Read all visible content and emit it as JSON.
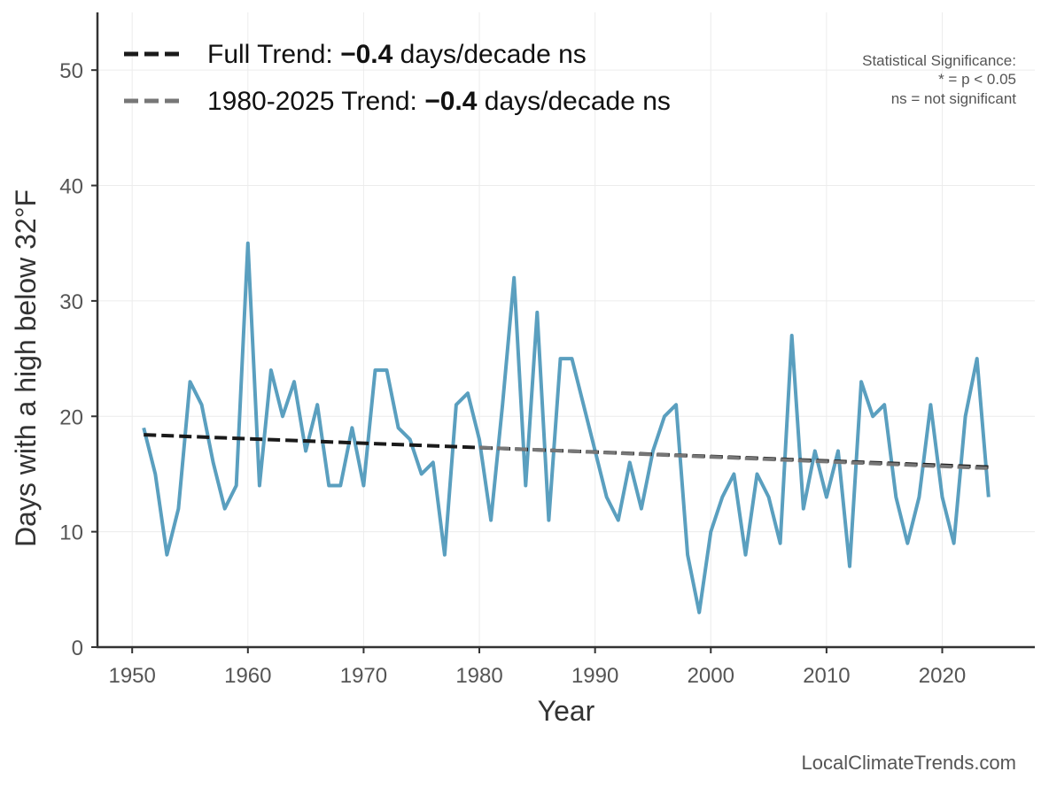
{
  "chart_data": {
    "type": "line",
    "xlabel": "Year",
    "ylabel": "Days with a high below 32°F",
    "xlim": [
      1947,
      2028
    ],
    "ylim": [
      0,
      55
    ],
    "xticks": [
      1950,
      1960,
      1970,
      1980,
      1990,
      2000,
      2010,
      2020
    ],
    "yticks": [
      0,
      10,
      20,
      30,
      40,
      50
    ],
    "grid": true,
    "legend_position": "top-left",
    "series": [
      {
        "kind": "observed",
        "color": "#5a9fbf",
        "x": [
          1951,
          1952,
          1953,
          1954,
          1955,
          1956,
          1957,
          1958,
          1959,
          1960,
          1961,
          1962,
          1963,
          1964,
          1965,
          1966,
          1967,
          1968,
          1969,
          1970,
          1971,
          1972,
          1973,
          1974,
          1975,
          1976,
          1977,
          1978,
          1979,
          1980,
          1981,
          1982,
          1983,
          1984,
          1985,
          1986,
          1987,
          1988,
          1989,
          1990,
          1991,
          1992,
          1993,
          1994,
          1995,
          1996,
          1997,
          1998,
          1999,
          2000,
          2001,
          2002,
          2003,
          2004,
          2005,
          2006,
          2007,
          2008,
          2009,
          2010,
          2011,
          2012,
          2013,
          2014,
          2015,
          2016,
          2017,
          2018,
          2019,
          2020,
          2021,
          2022,
          2023,
          2024
        ],
        "values": [
          19,
          15,
          8,
          12,
          23,
          21,
          16,
          12,
          14,
          35,
          14,
          24,
          20,
          23,
          17,
          21,
          14,
          14,
          19,
          14,
          24,
          24,
          19,
          18,
          15,
          16,
          8,
          21,
          22,
          18,
          11,
          21,
          32,
          14,
          29,
          11,
          25,
          25,
          21,
          17,
          13,
          11,
          16,
          12,
          17,
          20,
          21,
          8,
          3,
          10,
          13,
          15,
          8,
          15,
          13,
          9,
          27,
          12,
          17,
          13,
          17,
          7,
          23,
          20,
          21,
          13,
          9,
          13,
          21,
          13,
          9,
          20,
          25,
          13
        ]
      }
    ],
    "trends": [
      {
        "name": "Full Trend",
        "color": "#1a1a1a",
        "x": [
          1951,
          2024
        ],
        "values": [
          18.4,
          15.6
        ],
        "legend_prefix": "Full Trend: ",
        "legend_value": "−0.4",
        "legend_suffix": " days/decade ns"
      },
      {
        "name": "1980-2025 Trend",
        "color": "#777777",
        "x": [
          1980,
          2024
        ],
        "values": [
          17.3,
          15.5
        ],
        "legend_prefix": "1980-2025 Trend: ",
        "legend_value": "−0.4",
        "legend_suffix": " days/decade ns"
      }
    ],
    "significance_note": [
      "Statistical Significance:",
      "* = p < 0.05",
      "ns = not significant"
    ],
    "source": "LocalClimateTrends.com"
  }
}
